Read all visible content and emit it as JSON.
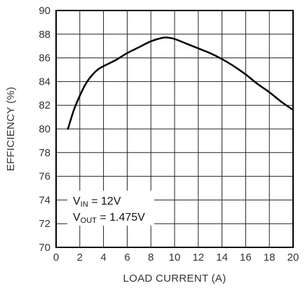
{
  "chart_data": {
    "type": "line",
    "xlabel": "LOAD CURRENT (A)",
    "ylabel": "EFFICIENCY (%)",
    "xlim": [
      0,
      20
    ],
    "ylim": [
      70,
      90
    ],
    "x_ticks": [
      0,
      2,
      4,
      6,
      8,
      10,
      12,
      14,
      16,
      18,
      20
    ],
    "y_ticks": [
      70,
      72,
      74,
      76,
      78,
      80,
      82,
      84,
      86,
      88,
      90
    ],
    "grid": true,
    "series": [
      {
        "x": [
          1,
          1.5,
          2,
          2.5,
          3,
          3.5,
          4,
          5,
          6,
          7,
          8,
          9,
          9.5,
          10,
          11,
          12,
          13,
          14,
          15,
          16,
          17,
          18,
          19,
          20
        ],
        "y": [
          80.0,
          81.6,
          82.8,
          83.8,
          84.5,
          85.0,
          85.3,
          85.8,
          86.4,
          86.9,
          87.4,
          87.7,
          87.7,
          87.6,
          87.2,
          86.8,
          86.4,
          85.9,
          85.3,
          84.6,
          83.8,
          83.1,
          82.3,
          81.6
        ],
        "color": "#000000"
      }
    ],
    "annotations": [
      {
        "main": "V",
        "sub": "IN",
        "rest": " = 12V"
      },
      {
        "main": "V",
        "sub": "OUT",
        "rest": " = 1.475V"
      }
    ]
  }
}
